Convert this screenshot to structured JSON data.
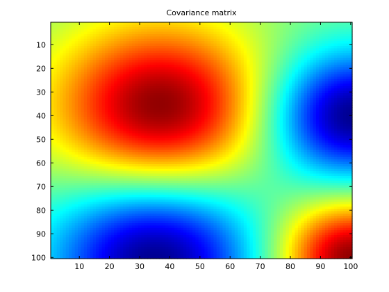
{
  "chart_data": {
    "type": "heatmap",
    "title": "Covariance matrix",
    "xlabel": "",
    "ylabel": "",
    "colormap": "jet",
    "grid": false,
    "rows": 100,
    "cols": 100,
    "xlim": [
      0.5,
      100.5
    ],
    "ylim": [
      100.5,
      0.5
    ],
    "x_ticks": [
      10,
      20,
      30,
      40,
      50,
      60,
      70,
      80,
      90,
      100
    ],
    "y_ticks": [
      10,
      20,
      30,
      40,
      50,
      60,
      70,
      80,
      90,
      100
    ],
    "value_range": [
      0,
      1
    ],
    "features": [
      {
        "row": 37,
        "col": 37,
        "value": 1.0,
        "radius": 33
      },
      {
        "row": 40,
        "col": 100,
        "value": 0.0,
        "radius": 26
      },
      {
        "row": 100,
        "col": 35,
        "value": 0.0,
        "radius": 33
      },
      {
        "row": 100,
        "col": 100,
        "value": 1.0,
        "radius": 22
      }
    ],
    "background_value": 0.5
  }
}
